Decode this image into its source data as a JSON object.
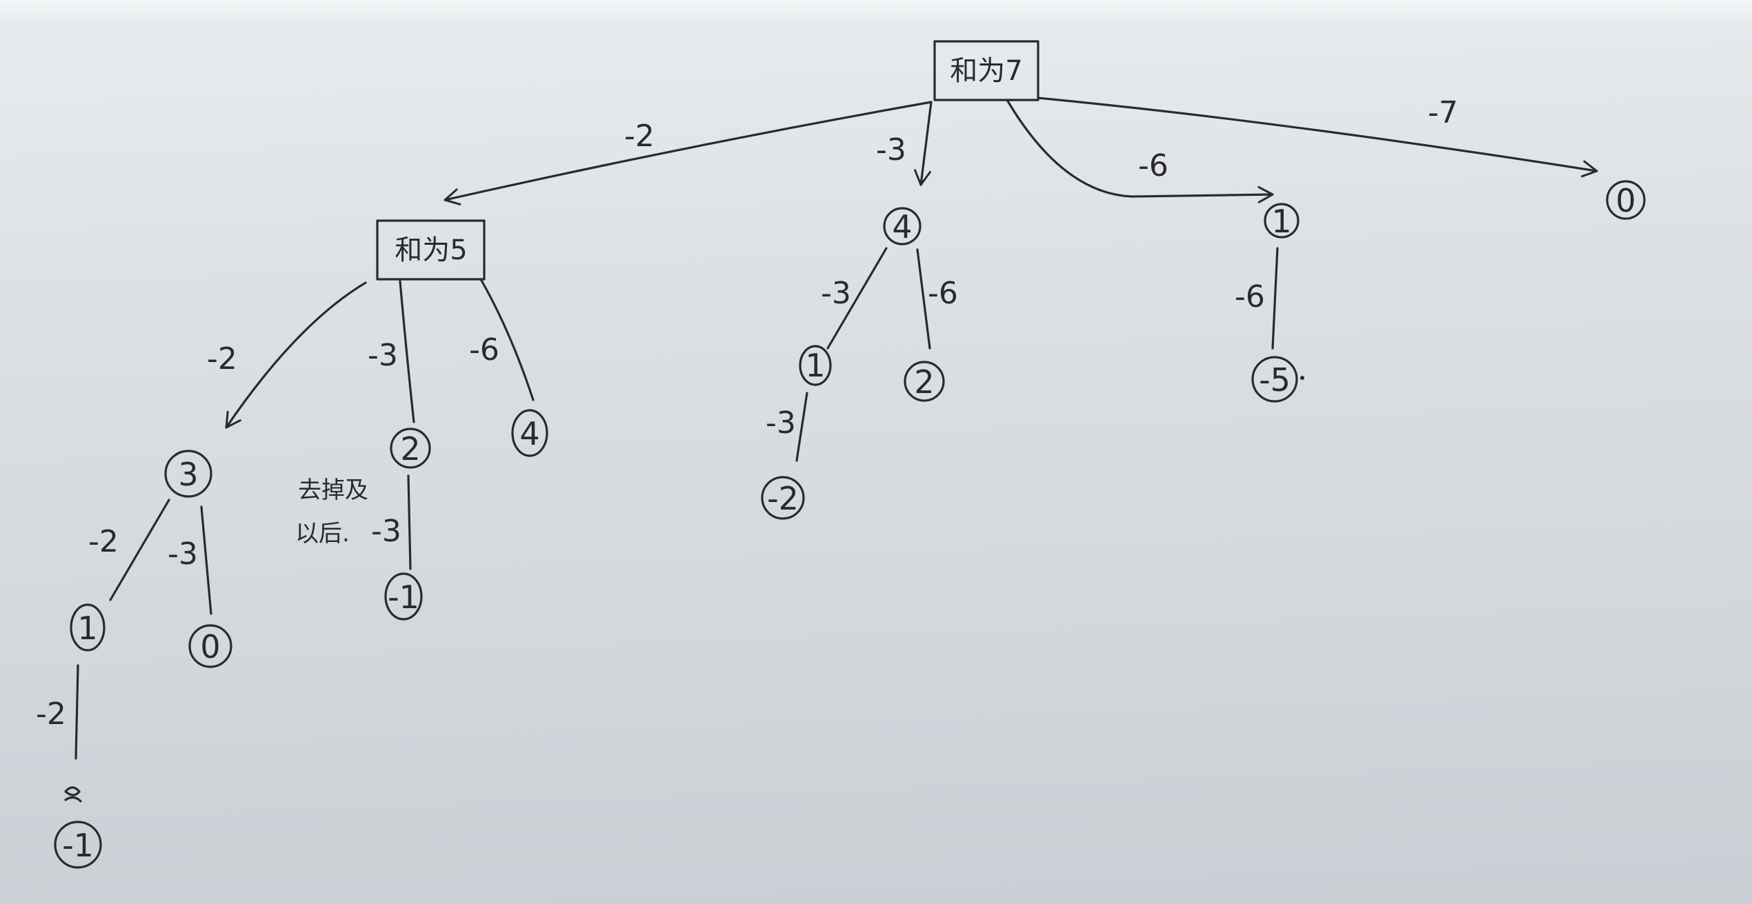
{
  "root": {
    "label": "和为7"
  },
  "sub_root": {
    "label": "和为5"
  },
  "edges": {
    "root_to_sub": "-2",
    "root_to_n4": "-3",
    "root_to_n1": "-6",
    "root_to_n0": "-7",
    "sub_to_n3": "-2",
    "sub_to_n2": "-3",
    "sub_to_n4b": "-6",
    "n3_to_n1": "-2",
    "n3_to_n0": "-3",
    "n1_to_nm1": "-2",
    "n2_to_nm1": "-3",
    "n4_to_n1": "-3",
    "n4_to_n2": "-6",
    "n1r_to_nm2": "-3",
    "n1far_to_nm5": "-6"
  },
  "nodes": {
    "n4": "4",
    "n1_right": "1",
    "n0_far": "0",
    "n3": "3",
    "n2_mid": "2",
    "n4_b": "4",
    "n1_left": "1",
    "n0_left": "0",
    "nm1_left": "-1",
    "nm1_mid": "-1",
    "n1_center": "1",
    "n2_center": "2",
    "nm2_center": "-2",
    "nm5_right": "-5"
  },
  "note": {
    "line1": "去掉及",
    "line2": "以后."
  }
}
